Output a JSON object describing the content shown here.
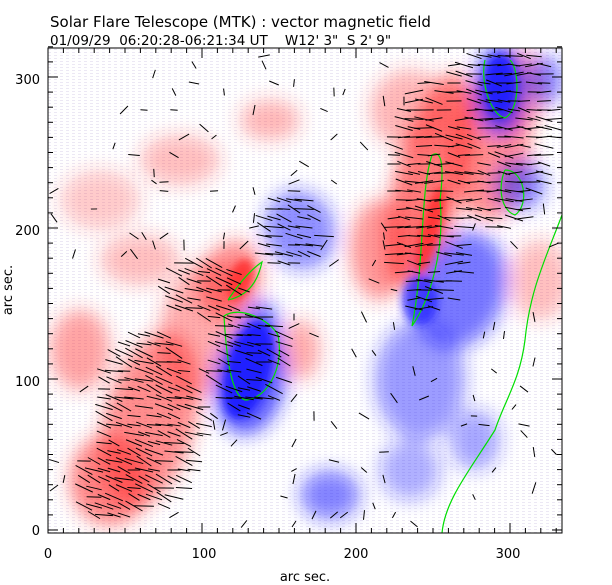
{
  "title": "Solar Flare Telescope (MTK) : vector magnetic field",
  "subtitle": "01/09/29  06:20:28-06:21:34 UT    W12' 3\"  S 2' 9\"",
  "chart_data": {
    "type": "heatmap",
    "title": "Solar Flare Telescope (MTK) : vector magnetic field",
    "xlabel": "arc sec.",
    "ylabel": "arc sec.",
    "xlim": [
      0,
      334
    ],
    "ylim": [
      0,
      320
    ],
    "x_ticks": [
      "0",
      "100",
      "200",
      "300"
    ],
    "y_ticks": [
      "0",
      "100",
      "200",
      "300"
    ],
    "colors": {
      "positive": "#ff3030",
      "negative": "#2020ff",
      "contour": "#00e000",
      "vectors": "#000000"
    }
  }
}
